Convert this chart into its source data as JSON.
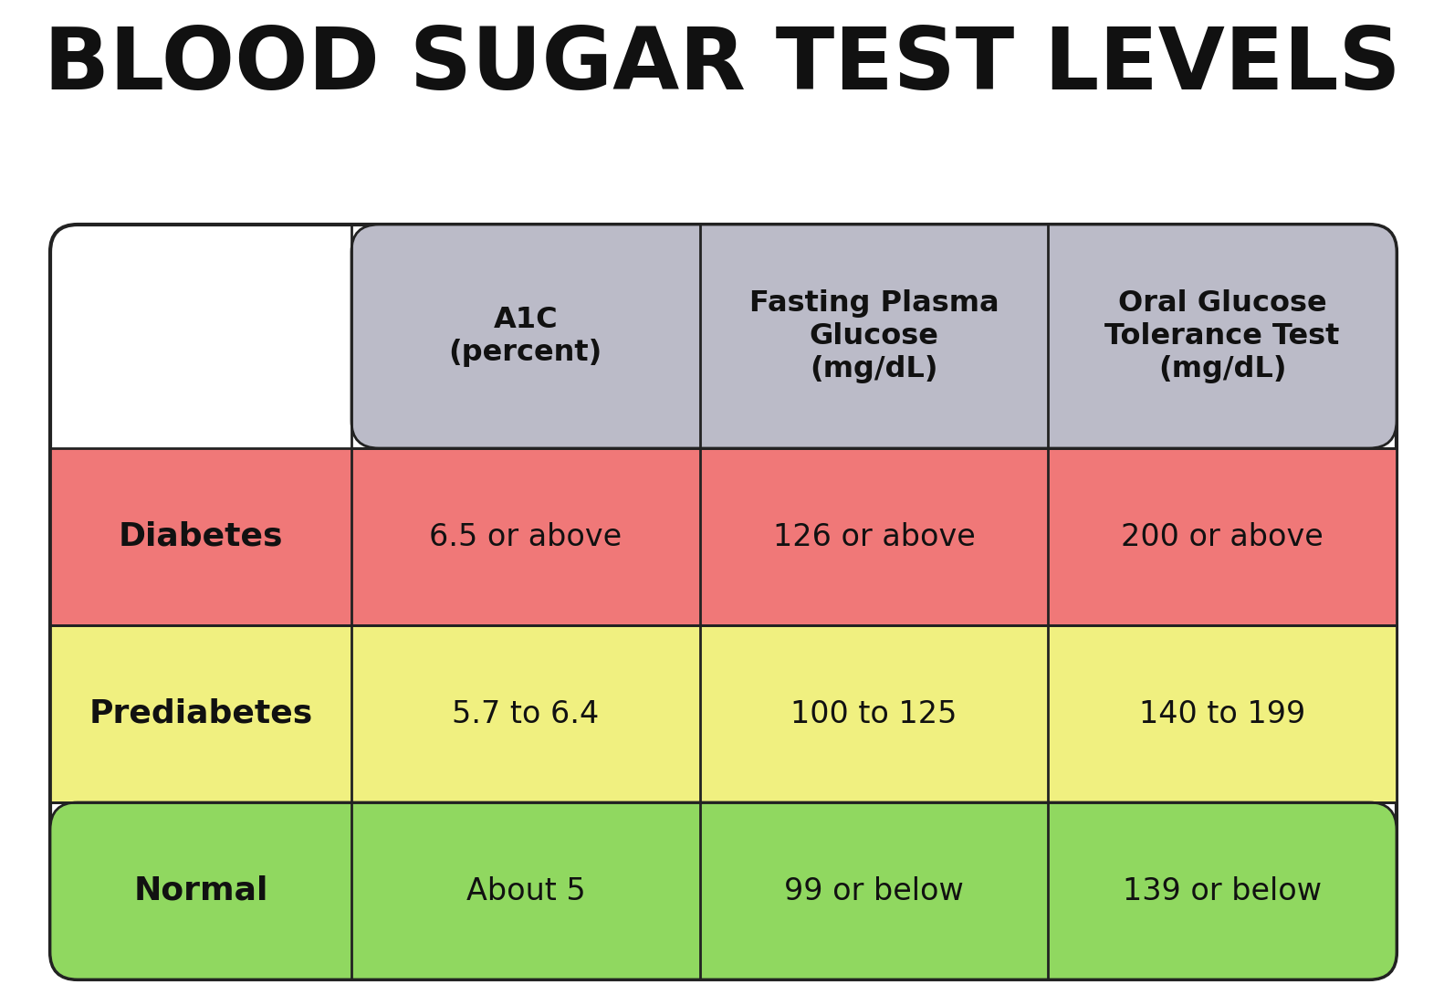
{
  "title": "BLOOD SUGAR TEST LEVELS",
  "title_fontsize": 68,
  "background_color": "#ffffff",
  "header_bg": "#bbbbc8",
  "header_text_color": "#111111",
  "row_colors": [
    "#f07878",
    "#f0f080",
    "#90d860"
  ],
  "row_labels": [
    "Diabetes",
    "Prediabetes",
    "Normal"
  ],
  "col_headers": [
    "A1C\n(percent)",
    "Fasting Plasma\nGlucose\n(mg/dL)",
    "Oral Glucose\nTolerance Test\n(mg/dL)"
  ],
  "cell_data": [
    [
      "6.5 or above",
      "126 or above",
      "200 or above"
    ],
    [
      "5.7 to 6.4",
      "100 to 125",
      "140 to 199"
    ],
    [
      "About 5",
      "99 or below",
      "139 or below"
    ]
  ],
  "border_color": "#222222",
  "cell_fontsize": 24,
  "header_fontsize": 23,
  "label_fontsize": 26,
  "outer_border_color": "#111111",
  "outer_border_lw": 3,
  "fig_w": 15.82,
  "fig_h": 11.01,
  "dpi": 100
}
